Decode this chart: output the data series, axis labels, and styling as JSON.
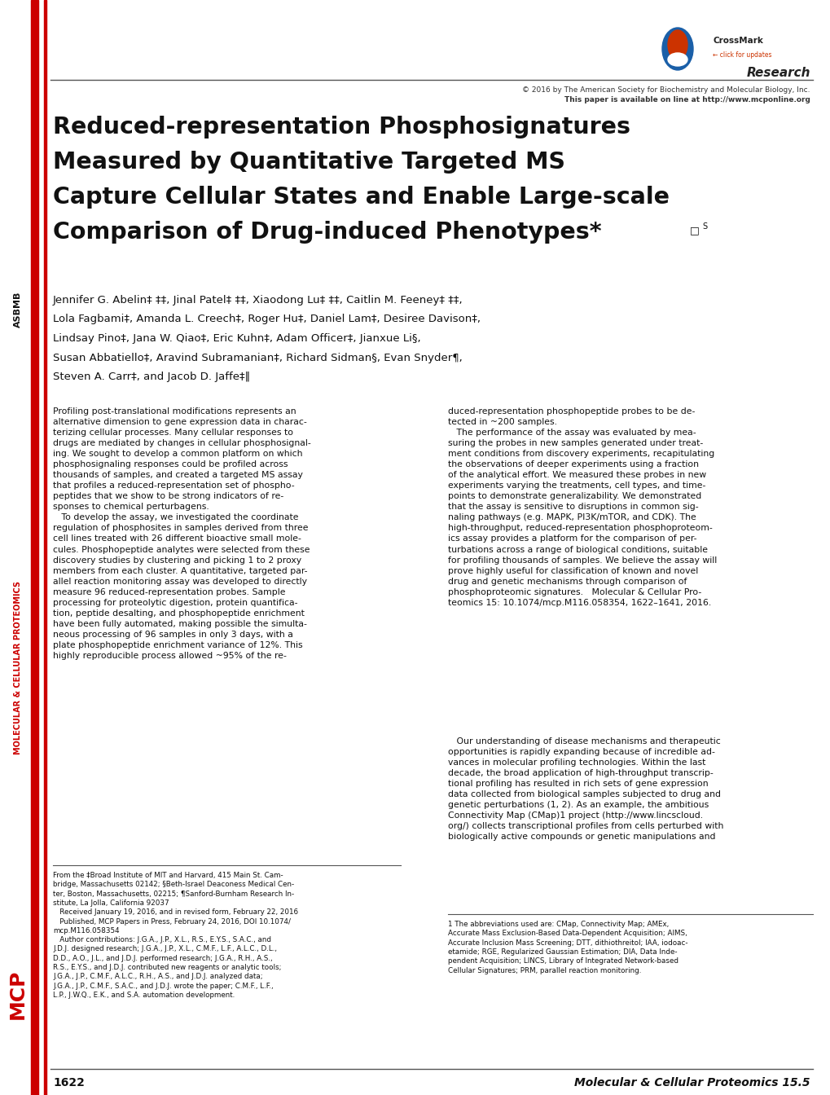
{
  "page_width": 10.2,
  "page_height": 13.44,
  "dpi": 100,
  "background_color": "#ffffff",
  "left_bar_color": "#cc0000",
  "copyright_line": "© 2016 by The American Society for Biochemistry and Molecular Biology, Inc.",
  "online_line": "This paper is available on line at http://www.mcponline.org",
  "title_lines": [
    "Reduced-representation Phosphosignatures",
    "Measured by Quantitative Targeted MS",
    "Capture Cellular States and Enable Large-scale",
    "Comparison of Drug-induced Phenotypes*"
  ],
  "authors_lines": [
    "Jennifer G. Abelin‡ ‡‡, Jinal Patel‡ ‡‡, Xiaodong Lu‡ ‡‡, Caitlin M. Feeney‡ ‡‡,",
    "Lola Fagbami‡, Amanda L. Creech‡, Roger Hu‡, Daniel Lam‡, Desiree Davison‡,",
    "Lindsay Pino‡, Jana W. Qiao‡, Eric Kuhn‡, Adam Officer‡, Jianxue Li§,",
    "Susan Abbatiello‡, Aravind Subramanian‡, Richard Sidman§, Evan Snyder¶,",
    "Steven A. Carr‡, and Jacob D. Jaffe‡‖"
  ],
  "col1_abstract": "Profiling post-translational modifications represents an\nalternative dimension to gene expression data in charac-\nterizing cellular processes. Many cellular responses to\ndrugs are mediated by changes in cellular phosphosignal-\ning. We sought to develop a common platform on which\nphosphosignaling responses could be profiled across\nthousands of samples, and created a targeted MS assay\nthat profiles a reduced-representation set of phospho-\npeptides that we show to be strong indicators of re-\nsponses to chemical perturbagens.\n   To develop the assay, we investigated the coordinate\nregulation of phosphosites in samples derived from three\ncell lines treated with 26 different bioactive small mole-\ncules. Phosphopeptide analytes were selected from these\ndiscovery studies by clustering and picking 1 to 2 proxy\nmembers from each cluster. A quantitative, targeted par-\nallel reaction monitoring assay was developed to directly\nmeasure 96 reduced-representation probes. Sample\nprocessing for proteolytic digestion, protein quantifica-\ntion, peptide desalting, and phosphopeptide enrichment\nhave been fully automated, making possible the simulta-\nneous processing of 96 samples in only 3 days, with a\nplate phosphopeptide enrichment variance of 12%. This\nhighly reproducible process allowed ~95% of the re-",
  "col2_abstract": "duced-representation phosphopeptide probes to be de-\ntected in ~200 samples.\n   The performance of the assay was evaluated by mea-\nsuring the probes in new samples generated under treat-\nment conditions from discovery experiments, recapitulating\nthe observations of deeper experiments using a fraction\nof the analytical effort. We measured these probes in new\nexperiments varying the treatments, cell types, and time-\npoints to demonstrate generalizability. We demonstrated\nthat the assay is sensitive to disruptions in common sig-\nnaling pathways (e.g. MAPK, PI3K/mTOR, and CDK). The\nhigh-throughput, reduced-representation phosphoproteom-\nics assay provides a platform for the comparison of per-\nturbations across a range of biological conditions, suitable\nfor profiling thousands of samples. We believe the assay will\nprove highly useful for classification of known and novel\ndrug and genetic mechanisms through comparison of\nphosphoproteomic signatures.   Molecular & Cellular Pro-\nteomics 15: 10.1074/mcp.M116.058354, 1622–1641, 2016.",
  "col2_intro": "   Our understanding of disease mechanisms and therapeutic\nopportunities is rapidly expanding because of incredible ad-\nvances in molecular profiling technologies. Within the last\ndecade, the broad application of high-throughput transcrip-\ntional profiling has resulted in rich sets of gene expression\ndata collected from biological samples subjected to drug and\ngenetic perturbations (1, 2). As an example, the ambitious\nConnectivity Map (CMap)1 project (http://www.lincscloud.\norg/) collects transcriptional profiles from cells perturbed with\nbiologically active compounds or genetic manipulations and",
  "footnote_left": "From the ‡Broad Institute of MIT and Harvard, 415 Main St. Cam-\nbridge, Massachusetts 02142; §Beth-Israel Deaconess Medical Cen-\nter, Boston, Massachusetts, 02215; ¶Sanford-Burnham Research In-\nstitute, La Jolla, California 92037\n   Received January 19, 2016, and in revised form, February 22, 2016\n   Published, MCP Papers in Press, February 24, 2016, DOI 10.1074/\nmcp.M116.058354\n   Author contributions: J.G.A., J.P., X.L., R.S., E.Y.S., S.A.C., and\nJ.D.J. designed research; J.G.A., J.P., X.L., C.M.F., L.F., A.L.C., D.L.,\nD.D., A.O., J.L., and J.D.J. performed research; J.G.A., R.H., A.S.,\nR.S., E.Y.S., and J.D.J. contributed new reagents or analytic tools;\nJ.G.A., J.P., C.M.F., A.L.C., R.H., A.S., and J.D.J. analyzed data;\nJ.G.A., J.P., C.M.F., S.A.C., and J.D.J. wrote the paper; C.M.F., L.F.,\nL.P., J.W.Q., E.K., and S.A. automation development.",
  "footnote_right": "1 The abbreviations used are: CMap, Connectivity Map; AMEx,\nAccurate Mass Exclusion-Based Data-Dependent Acquisition; AIMS,\nAccurate Inclusion Mass Screening; DTT, dithiothreitol; IAA, iodoac-\netamide; RGE, Regularized Gaussian Estimation; DIA, Data Inde-\npendent Acquisition; LINCS, Library of Integrated Network-based\nCellular Signatures; PRM, parallel reaction monitoring.",
  "page_number": "1622",
  "journal_name": "Molecular & Cellular Proteomics 15.5",
  "sidebar_mid": "MOLECULAR & CELLULAR PROTEOMICS",
  "sidebar_bot": "MCP"
}
